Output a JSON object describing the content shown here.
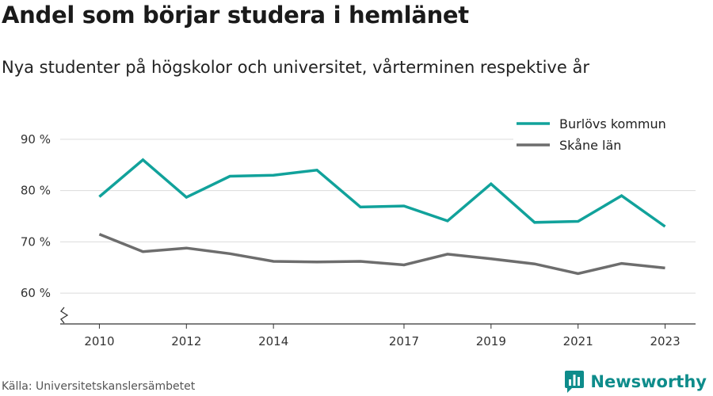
{
  "header": {
    "title": "Andel som börjar studera i hemlänet",
    "subtitle": "Nya studenter på högskolor och universitet, vårterminen respektive år"
  },
  "footer": {
    "source": "Källa: Universitetskanslersämbetet",
    "brand": "Newsworthy"
  },
  "colors": {
    "teal": "#11a29b",
    "gray": "#6d6d6d",
    "brand": "#0e8c8b"
  },
  "chart_data": {
    "type": "line",
    "x": [
      2010,
      2011,
      2012,
      2013,
      2014,
      2015,
      2016,
      2017,
      2018,
      2019,
      2020,
      2021,
      2022,
      2023
    ],
    "xticks": [
      2010,
      2012,
      2014,
      2017,
      2019,
      2021,
      2023
    ],
    "xtick_labels": [
      "2010",
      "2012",
      "2014",
      "2017",
      "2019",
      "2021",
      "2023"
    ],
    "yticks": [
      60,
      70,
      80,
      90
    ],
    "ytick_labels": [
      "60 %",
      "70 %",
      "80 %",
      "90 %"
    ],
    "ylim": [
      54,
      94
    ],
    "xlim": [
      2009.1,
      2023.7
    ],
    "grid": true,
    "axis_break": true,
    "legend_position": "top-right",
    "series": [
      {
        "name": "Burlövs kommun",
        "color": "#11a29b",
        "values": [
          78.8,
          86.0,
          78.7,
          82.8,
          83.0,
          84.0,
          76.8,
          77.0,
          74.1,
          81.3,
          73.8,
          74.0,
          79.0,
          73.0
        ]
      },
      {
        "name": "Skåne län",
        "color": "#6d6d6d",
        "values": [
          71.5,
          68.1,
          68.8,
          67.7,
          66.2,
          66.1,
          66.2,
          65.5,
          67.6,
          66.7,
          65.7,
          63.8,
          65.8,
          64.9
        ]
      }
    ]
  }
}
